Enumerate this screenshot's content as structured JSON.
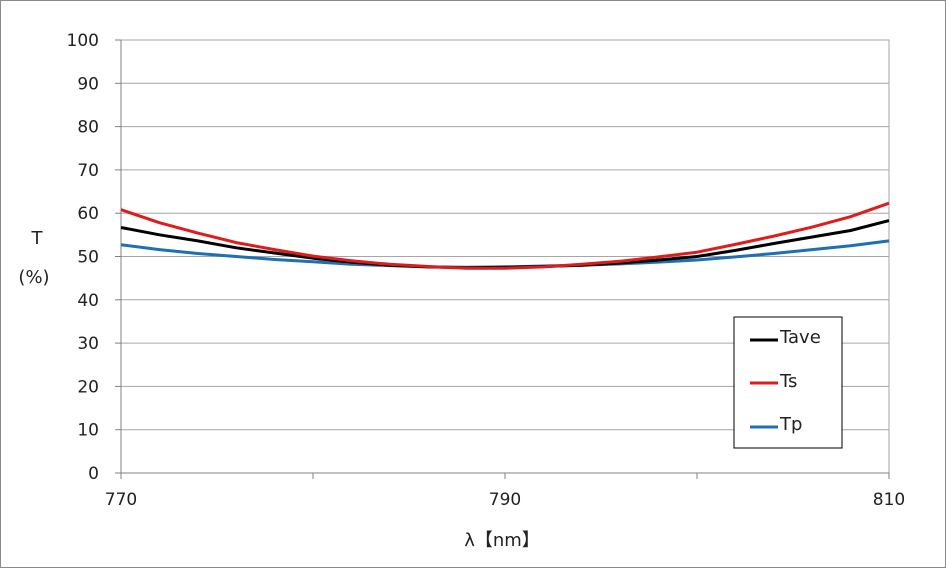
{
  "chart_data": {
    "type": "line",
    "ylabel_line1": "T",
    "ylabel_line2": "(%)",
    "xlabel": "λ【nm】",
    "xlim": [
      770,
      810
    ],
    "ylim": [
      0,
      100
    ],
    "xticks": [
      770,
      790,
      810
    ],
    "xgrid_every": 10,
    "yticks": [
      0,
      10,
      20,
      30,
      40,
      50,
      60,
      70,
      80,
      90,
      100
    ],
    "grid": "horizontal",
    "legend_position": "right",
    "series": [
      {
        "name": "Tave",
        "color": "#000000",
        "x": [
          770,
          772,
          774,
          776,
          778,
          780,
          782,
          784,
          786,
          788,
          790,
          792,
          794,
          796,
          798,
          800,
          802,
          804,
          806,
          808,
          810
        ],
        "y": [
          56.7,
          55.0,
          53.6,
          52.0,
          50.8,
          49.6,
          48.7,
          48.0,
          47.6,
          47.4,
          47.5,
          47.7,
          48.0,
          48.5,
          49.2,
          50.0,
          51.4,
          53.0,
          54.5,
          56.0,
          58.3
        ]
      },
      {
        "name": "Ts",
        "color": "#e01b1b",
        "x": [
          770,
          772,
          774,
          776,
          778,
          780,
          782,
          784,
          786,
          788,
          790,
          792,
          794,
          796,
          798,
          800,
          802,
          804,
          806,
          808,
          810
        ],
        "y": [
          60.8,
          57.8,
          55.4,
          53.2,
          51.6,
          50.1,
          49.0,
          48.2,
          47.7,
          47.3,
          47.3,
          47.6,
          48.2,
          48.9,
          49.9,
          51.0,
          52.8,
          54.7,
          56.8,
          59.2,
          62.3
        ]
      },
      {
        "name": "Tp",
        "color": "#1f6fb4",
        "x": [
          770,
          772,
          774,
          776,
          778,
          780,
          782,
          784,
          786,
          788,
          790,
          792,
          794,
          796,
          798,
          800,
          802,
          804,
          806,
          808,
          810
        ],
        "y": [
          52.7,
          51.6,
          50.7,
          50.0,
          49.3,
          48.8,
          48.2,
          47.9,
          47.6,
          47.5,
          47.6,
          47.8,
          48.0,
          48.3,
          48.7,
          49.2,
          49.9,
          50.7,
          51.6,
          52.5,
          53.6
        ]
      }
    ]
  }
}
